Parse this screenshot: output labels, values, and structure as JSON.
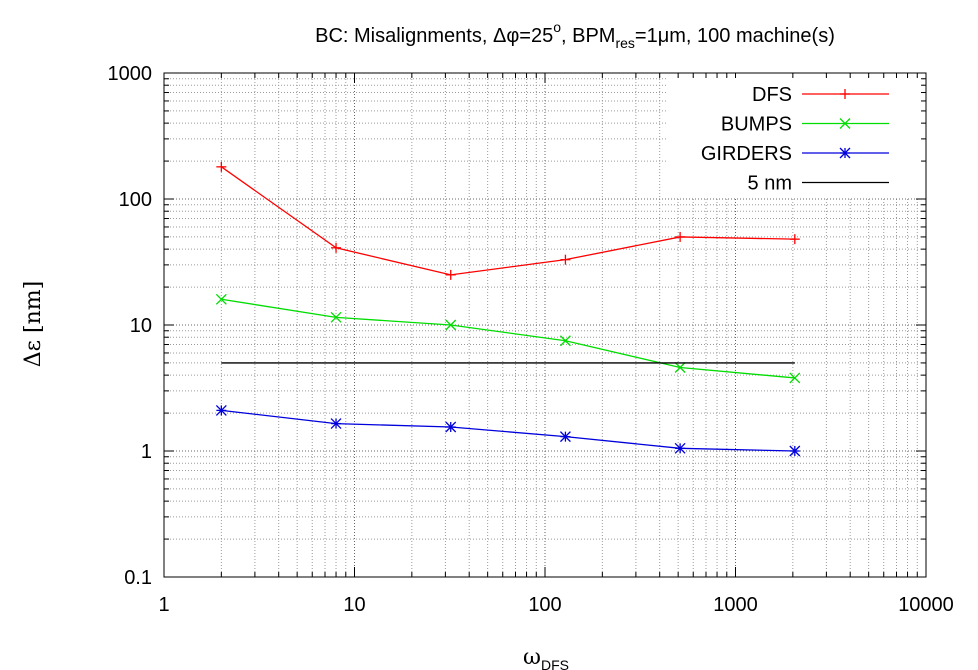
{
  "chart_data": {
    "type": "line",
    "title_parts": {
      "prefix": "BC: Misalignments, ",
      "delta": "Δφ=25",
      "deg_sup": "o",
      "sep": ", BPM",
      "res_sub": "res",
      "res_val": "=1μm, 100 machine(s)"
    },
    "xlabel": {
      "main": "ω",
      "sub": "DFS"
    },
    "ylabel": "Δε [nm]",
    "x_scale": "log",
    "y_scale": "log",
    "xlim": [
      1,
      10000
    ],
    "ylim": [
      0.1,
      1000
    ],
    "x_ticks": [
      {
        "value": 1,
        "label": "1"
      },
      {
        "value": 10,
        "label": "10"
      },
      {
        "value": 100,
        "label": "100"
      },
      {
        "value": 1000,
        "label": "1000"
      },
      {
        "value": 10000,
        "label": "10000"
      }
    ],
    "y_ticks": [
      {
        "value": 0.1,
        "label": "0.1"
      },
      {
        "value": 1,
        "label": "1"
      },
      {
        "value": 10,
        "label": "10"
      },
      {
        "value": 100,
        "label": "100"
      },
      {
        "value": 1000,
        "label": "1000"
      }
    ],
    "grid": true,
    "legend_position": "top-right",
    "x": [
      2,
      8,
      32,
      128,
      512,
      2048
    ],
    "series": [
      {
        "name": "DFS",
        "color": "#ff0000",
        "marker": "plus",
        "values": [
          180,
          41,
          25,
          33,
          50,
          48
        ]
      },
      {
        "name": "BUMPS",
        "color": "#00dd00",
        "marker": "cross",
        "values": [
          16,
          11.5,
          10,
          7.5,
          4.6,
          3.8
        ]
      },
      {
        "name": "GIRDERS",
        "color": "#0000dd",
        "marker": "star",
        "values": [
          2.1,
          1.65,
          1.55,
          1.3,
          1.05,
          1.0
        ]
      },
      {
        "name": "5 nm",
        "color": "#000000",
        "marker": "none",
        "values": [
          5,
          5,
          5,
          5,
          5,
          5
        ]
      }
    ]
  }
}
